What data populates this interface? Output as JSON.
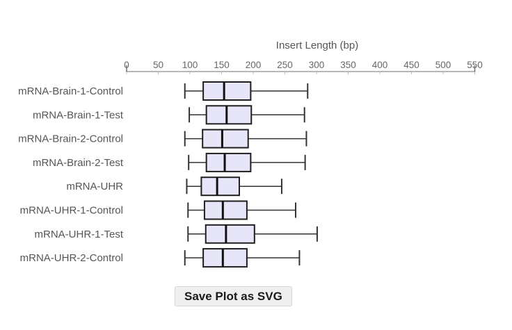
{
  "chart_data": {
    "type": "boxplot",
    "orientation": "horizontal",
    "title": "Insert Length (bp)",
    "xlabel": "Insert Length (bp)",
    "axis": {
      "min": 0,
      "max": 550,
      "tick_step": 50,
      "position": "top",
      "tick_labels": [
        "0",
        "50",
        "100",
        "150",
        "200",
        "250",
        "300",
        "350",
        "400",
        "450",
        "500",
        "550"
      ]
    },
    "rows": [
      {
        "label": "mRNA-Brain-1-Control",
        "min": 92,
        "q1": 121,
        "median": 154,
        "q3": 196,
        "max": 286
      },
      {
        "label": "mRNA-Brain-1-Test",
        "min": 99,
        "q1": 126,
        "median": 158,
        "q3": 197,
        "max": 281
      },
      {
        "label": "mRNA-Brain-2-Control",
        "min": 92,
        "q1": 120,
        "median": 151,
        "q3": 192,
        "max": 284
      },
      {
        "label": "mRNA-Brain-2-Test",
        "min": 98,
        "q1": 126,
        "median": 155,
        "q3": 196,
        "max": 282
      },
      {
        "label": "mRNA-UHR",
        "min": 95,
        "q1": 118,
        "median": 143,
        "q3": 178,
        "max": 245
      },
      {
        "label": "mRNA-UHR-1-Control",
        "min": 97,
        "q1": 123,
        "median": 152,
        "q3": 190,
        "max": 267
      },
      {
        "label": "mRNA-UHR-1-Test",
        "min": 97,
        "q1": 125,
        "median": 157,
        "q3": 202,
        "max": 301
      },
      {
        "label": "mRNA-UHR-2-Control",
        "min": 92,
        "q1": 121,
        "median": 152,
        "q3": 190,
        "max": 273
      }
    ]
  },
  "colors": {
    "background": "#ffffff",
    "box_fill": "#e6e6f8",
    "box_border": "#1f1f1f",
    "median": "#111111",
    "whisker": "#333333",
    "axis_line": "#8c8c8c",
    "tick_mark": "#bdbdbd",
    "axis_end_cap": "#707070",
    "tick_label": "#666666",
    "title": "#555555",
    "row_label": "#555555"
  },
  "button": {
    "label": "Save Plot as SVG"
  }
}
